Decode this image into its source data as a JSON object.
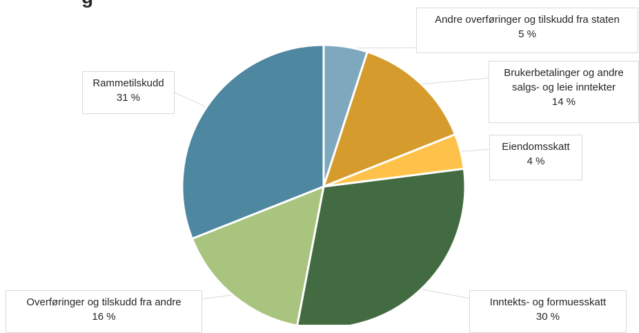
{
  "chart_data": {
    "type": "pie",
    "title_fragment": "g",
    "slices": [
      {
        "name": "Andre overføringer og tilskudd fra staten",
        "value": 5,
        "label": "5 %",
        "color": "#7ea8bd"
      },
      {
        "name": "Brukerbetalinger og andre\nsalgs- og leie inntekter",
        "value": 14,
        "label": "14 %",
        "color": "#d59b2d"
      },
      {
        "name": "Eiendomsskatt",
        "value": 4,
        "label": "4 %",
        "color": "#fec24a"
      },
      {
        "name": "Inntekts- og formuesskatt",
        "value": 30,
        "label": "30 %",
        "color": "#436b41"
      },
      {
        "name": "Overføringer og tilskudd fra andre",
        "value": 16,
        "label": "16 %",
        "color": "#a9c47f"
      },
      {
        "name": "Rammetilskudd",
        "value": 31,
        "label": "31 %",
        "color": "#4e87a0"
      }
    ]
  }
}
